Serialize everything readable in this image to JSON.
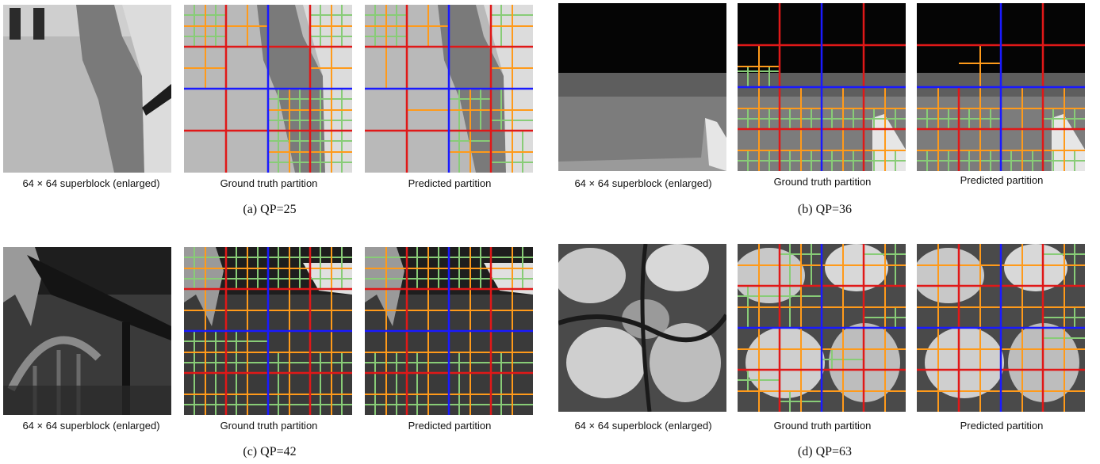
{
  "figure": {
    "panels": [
      {
        "id": "a",
        "caption": "(a)  QP=25",
        "images": [
          {
            "label": "64 × 64 superblock (enlarged)"
          },
          {
            "label": "Ground truth partition"
          },
          {
            "label": "Predicted partition"
          }
        ]
      },
      {
        "id": "b",
        "caption": "(b)  QP=36",
        "images": [
          {
            "label": "64 × 64 superblock (enlarged)"
          },
          {
            "label": "Ground truth partition"
          },
          {
            "label": "Predicted partition"
          }
        ]
      },
      {
        "id": "c",
        "caption": "(c)  QP=42",
        "images": [
          {
            "label": "64 × 64 superblock (enlarged)"
          },
          {
            "label": "Ground truth partition"
          },
          {
            "label": "Predicted partition"
          }
        ]
      },
      {
        "id": "d",
        "caption": "(d)  QP=63",
        "images": [
          {
            "label": "64 × 64 superblock (enlarged)"
          },
          {
            "label": "Ground truth partition"
          },
          {
            "label": "Predicted partition"
          }
        ]
      }
    ],
    "colors": {
      "level_64": "#1a1aff",
      "level_32": "#e01818",
      "level_16": "#ff9a1a",
      "level_8": "#88cc77"
    }
  }
}
